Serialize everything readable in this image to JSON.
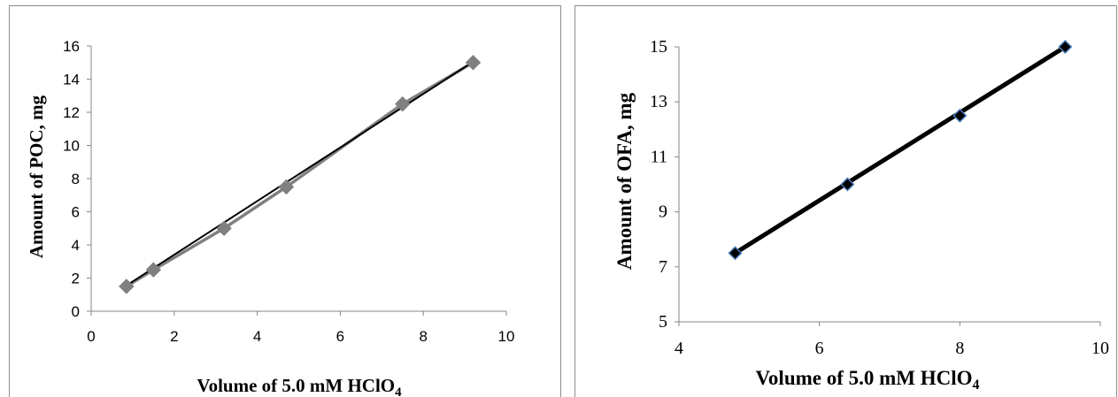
{
  "chart_data": [
    {
      "type": "scatter",
      "xlabel": "Volume of 5.0 mM HClO",
      "xlabel_sub": "4",
      "ylabel": "Amount of POC, mg",
      "xlim": [
        0,
        10
      ],
      "ylim": [
        0,
        16
      ],
      "xticks": [
        "0",
        "2",
        "4",
        "6",
        "8",
        "10"
      ],
      "yticks": [
        "0",
        "2",
        "4",
        "6",
        "8",
        "10",
        "12",
        "14",
        "16"
      ],
      "grid": false,
      "legend": "none",
      "series": [
        {
          "x": [
            0.85,
            1.5,
            3.2,
            4.7,
            7.5,
            9.2
          ],
          "y": [
            1.5,
            2.5,
            5.0,
            7.5,
            12.5,
            15.0
          ],
          "marker": "diamond",
          "color": "#808080",
          "connected": true
        }
      ],
      "trendline": {
        "x": [
          0.85,
          9.2
        ],
        "y": [
          1.55,
          15.05
        ],
        "color": "#000000"
      }
    },
    {
      "type": "scatter",
      "xlabel": "Volume of 5.0 mM HClO",
      "xlabel_sub": "4",
      "ylabel": "Amount of OFA, mg",
      "xlim": [
        4,
        10
      ],
      "ylim": [
        5,
        15
      ],
      "xticks": [
        "4",
        "6",
        "8",
        "10"
      ],
      "yticks": [
        "5",
        "7",
        "9",
        "11",
        "13",
        "15"
      ],
      "grid": false,
      "legend": "none",
      "series": [
        {
          "x": [
            4.8,
            6.4,
            8.0,
            9.5
          ],
          "y": [
            7.5,
            10.0,
            12.5,
            15.0
          ],
          "marker": "diamond",
          "color": "#000000",
          "edge_color": "#4a7ebb",
          "connected": false
        }
      ],
      "trendline": {
        "x": [
          4.8,
          9.5
        ],
        "y": [
          7.5,
          15.0
        ],
        "color": "#000000"
      }
    }
  ]
}
